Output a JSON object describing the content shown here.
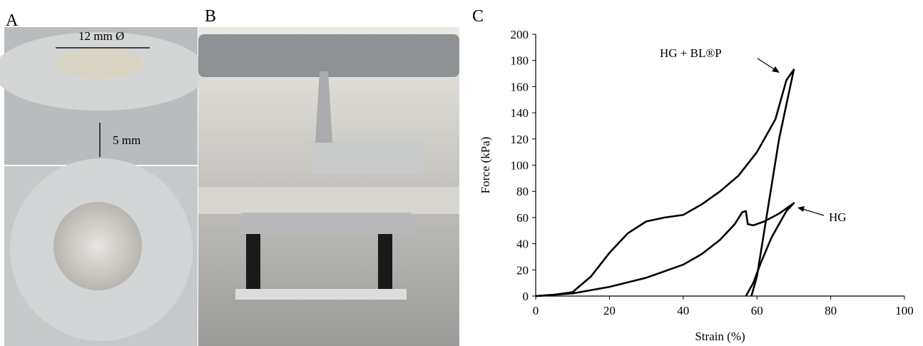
{
  "panels": {
    "a": {
      "label": "A",
      "diameter_label": "12 mm Ø",
      "height_label": "5 mm"
    },
    "b": {
      "label": "B"
    },
    "c": {
      "label": "C"
    }
  },
  "chart_data": {
    "type": "line",
    "x_label": "Strain (%)",
    "y_label": "Force (kPa)",
    "xlim": [
      0,
      100
    ],
    "ylim": [
      0,
      200
    ],
    "xticks": [
      0,
      20,
      40,
      60,
      80,
      100
    ],
    "yticks": [
      0,
      20,
      40,
      60,
      80,
      100,
      120,
      140,
      160,
      180,
      200
    ],
    "annotations": [
      "HG + BL®P",
      "HG"
    ],
    "series": [
      {
        "name": "HG + BL®P",
        "color": "#000000",
        "x": [
          0,
          5,
          10,
          15,
          20,
          25,
          30,
          35,
          40,
          45,
          50,
          55,
          60,
          65,
          68,
          70,
          66,
          62,
          60,
          58.5
        ],
        "values": [
          0,
          1,
          3,
          15,
          33,
          48,
          57,
          60,
          62,
          70,
          80,
          92,
          110,
          135,
          165,
          173,
          120,
          50,
          15,
          0
        ]
      },
      {
        "name": "HG",
        "color": "#000000",
        "x": [
          0,
          10,
          20,
          30,
          40,
          45,
          50,
          54,
          56,
          57,
          57.5,
          59,
          62,
          66,
          70,
          68,
          64,
          61,
          59,
          57
        ],
        "values": [
          0,
          2,
          7,
          14,
          24,
          32,
          43,
          55,
          64,
          65,
          55,
          54,
          57,
          63,
          71,
          65,
          45,
          25,
          10,
          0
        ]
      }
    ]
  }
}
